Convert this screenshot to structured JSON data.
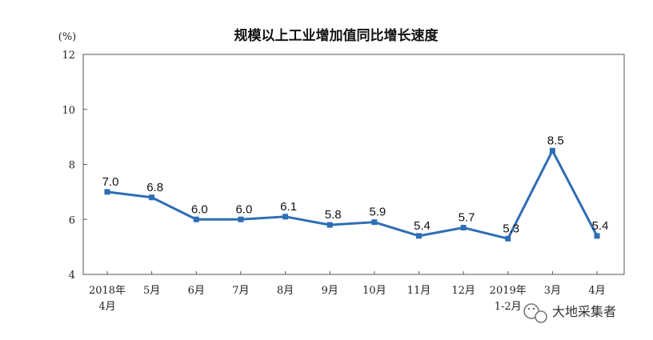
{
  "chart_data": {
    "type": "line",
    "title": "规模以上工业增加值同比增长速度",
    "unit_label": "(%)",
    "categories": [
      [
        "2018年",
        "4月"
      ],
      [
        "5月"
      ],
      [
        "6月"
      ],
      [
        "7月"
      ],
      [
        "8月"
      ],
      [
        "9月"
      ],
      [
        "10月"
      ],
      [
        "11月"
      ],
      [
        "12月"
      ],
      [
        "2019年",
        "1-2月"
      ],
      [
        "3月"
      ],
      [
        "4月"
      ]
    ],
    "values": [
      7.0,
      6.8,
      6.0,
      6.0,
      6.1,
      5.8,
      5.9,
      5.4,
      5.7,
      5.3,
      8.5,
      5.4
    ],
    "data_labels": [
      "7.0",
      "6.8",
      "6.0",
      "6.0",
      "6.1",
      "5.8",
      "5.9",
      "5.4",
      "5.7",
      "5.3",
      "8.5",
      "5.4"
    ],
    "ylim": [
      4,
      12
    ],
    "yticks": [
      4,
      6,
      8,
      10,
      12
    ],
    "grid": false,
    "line_color": "#2e6db4"
  },
  "watermark": {
    "text": "大地采集者",
    "icon": "wechat-icon"
  }
}
